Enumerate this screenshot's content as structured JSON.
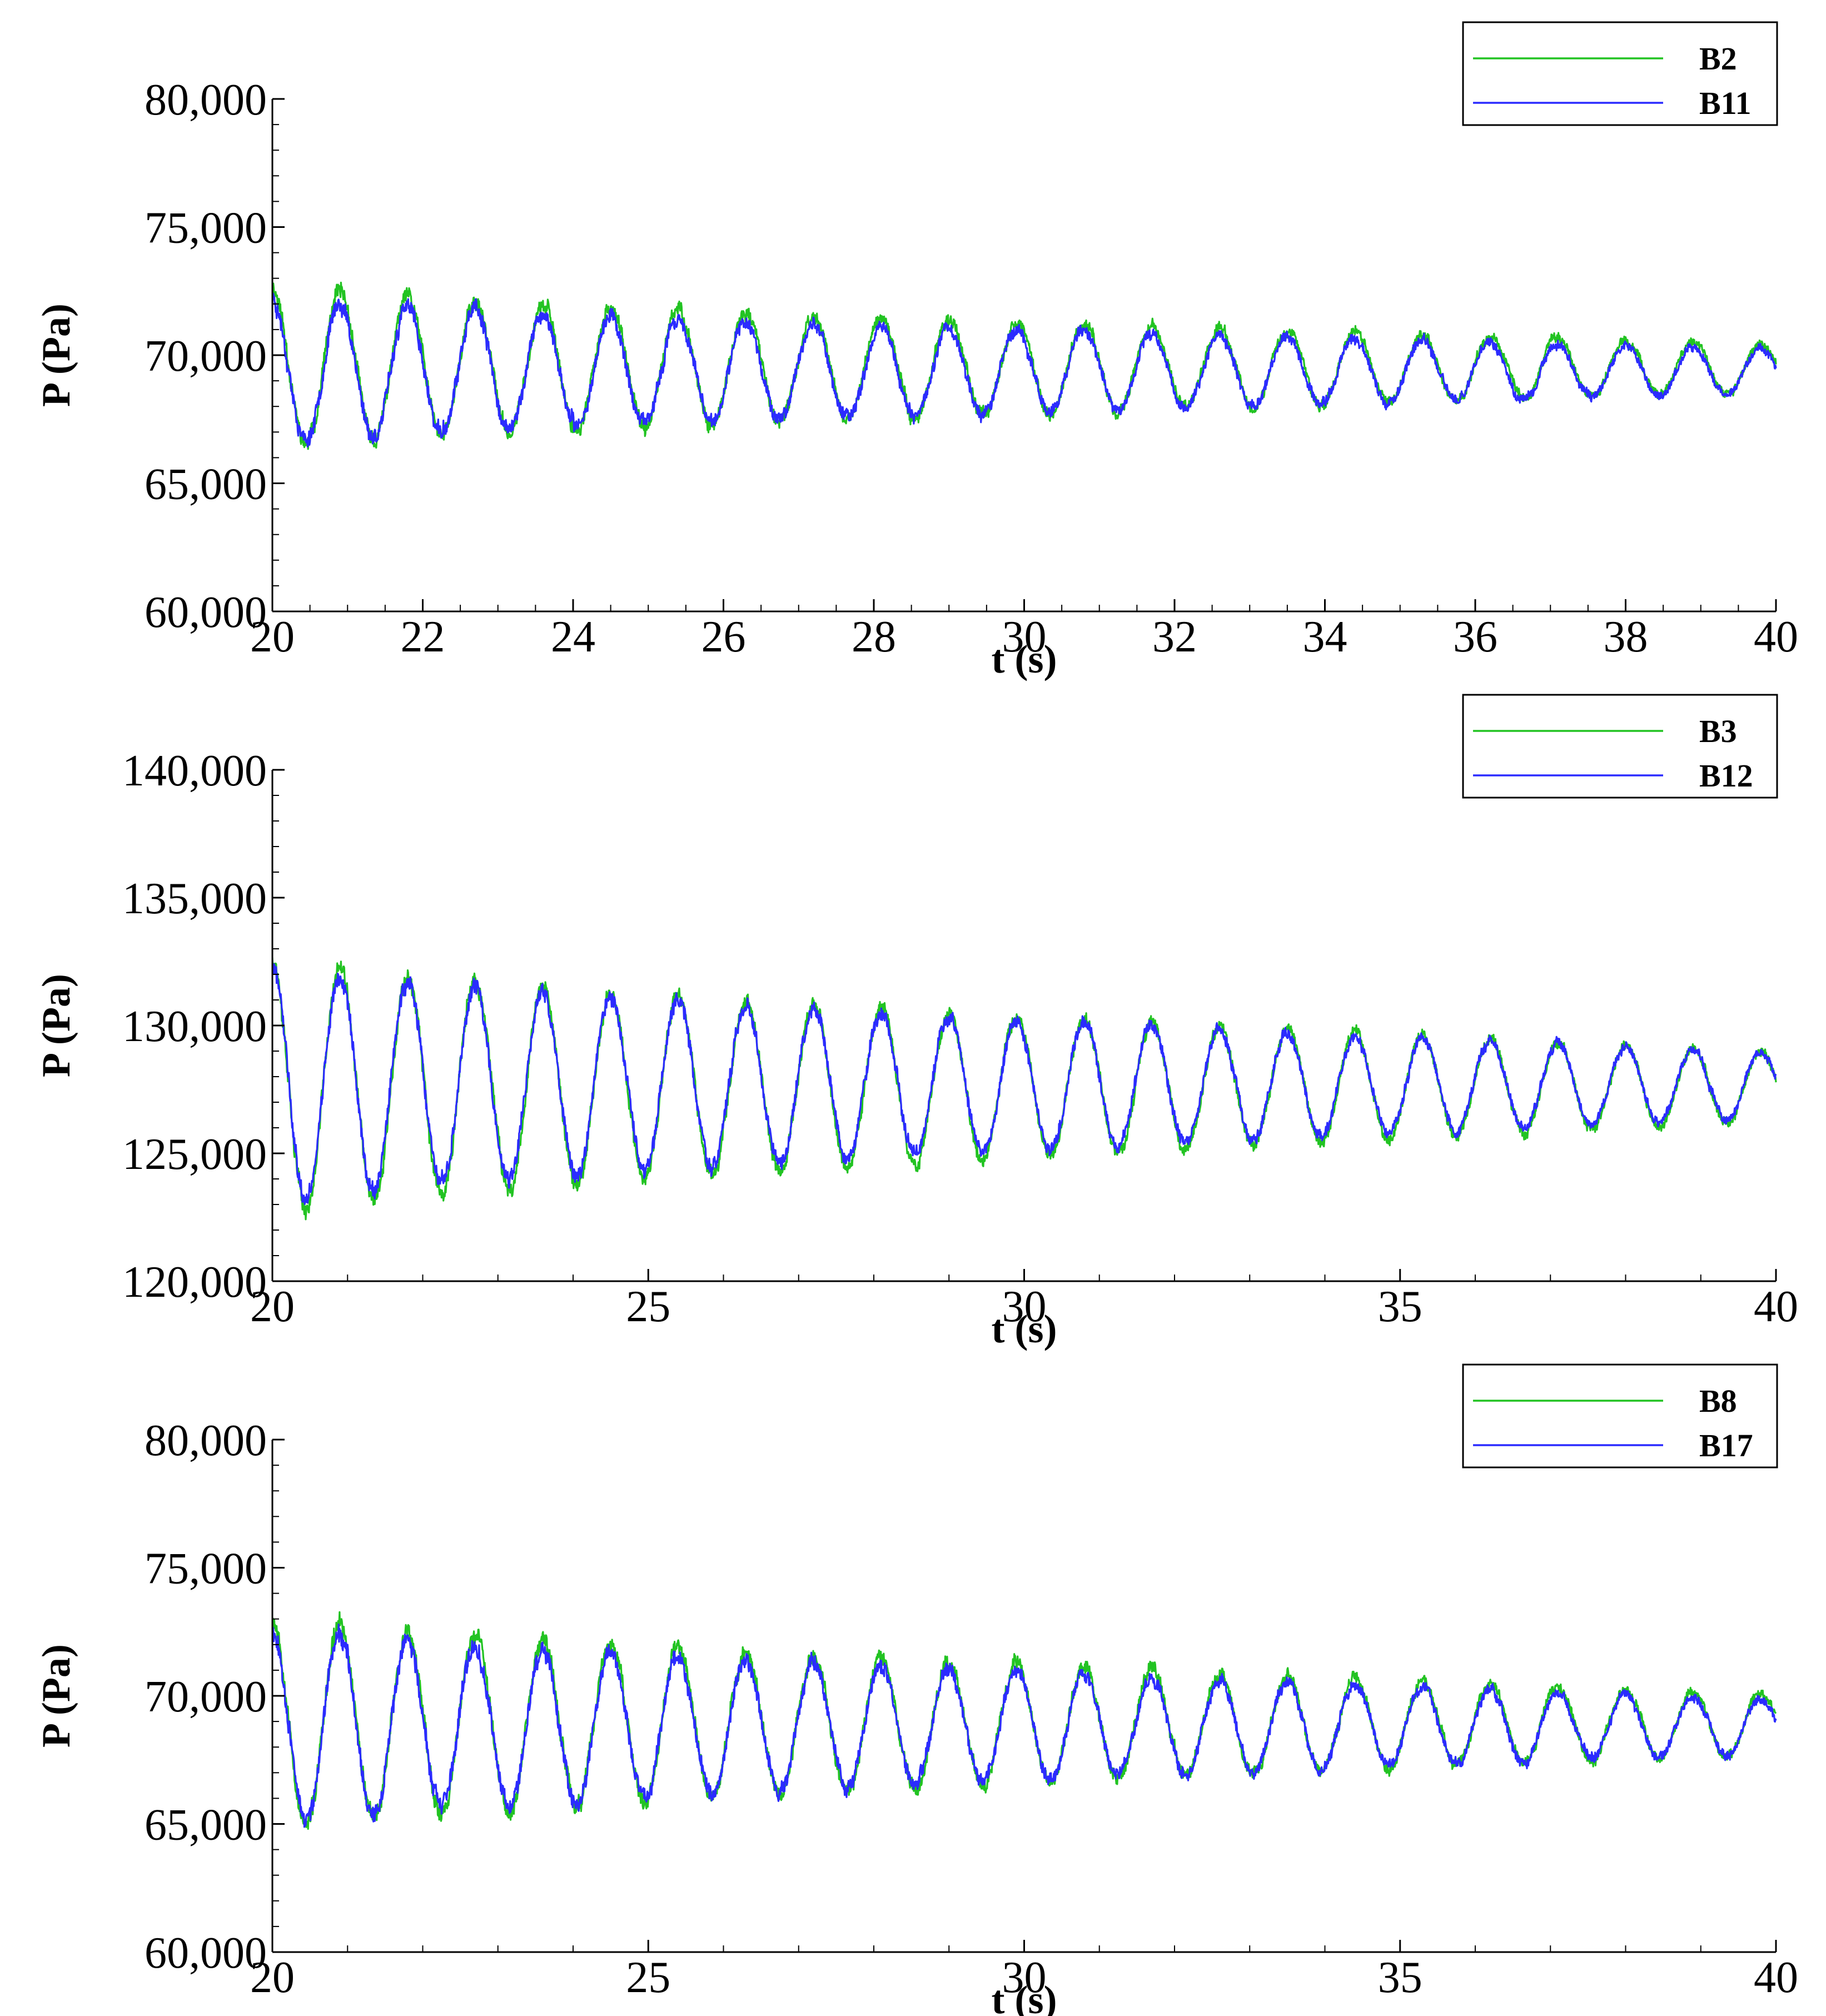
{
  "chart_data": [
    {
      "type": "line",
      "title": "",
      "xlabel": "t (s)",
      "ylabel": "P (Pa)",
      "xlim": [
        20,
        40
      ],
      "ylim": [
        60000,
        80000
      ],
      "xticks": [
        20,
        22,
        24,
        26,
        28,
        30,
        32,
        34,
        36,
        38,
        40
      ],
      "xtick_labels": [
        "20",
        "22",
        "24",
        "26",
        "28",
        "30",
        "32",
        "34",
        "36",
        "38",
        "40"
      ],
      "yticks": [
        60000,
        65000,
        70000,
        75000,
        80000
      ],
      "ytick_labels": [
        "60,000",
        "65,000",
        "70,000",
        "75,000",
        "80,000"
      ],
      "legend_position": "top-right",
      "period": 0.9,
      "mean": 69500,
      "amp_start": 3000,
      "amp_end": 900,
      "noise": 350,
      "series": [
        {
          "name": "B2",
          "color": "#22c322",
          "amp_scale": 1.05,
          "mean_offset": 0,
          "phase": 0,
          "seed": 11
        },
        {
          "name": "B11",
          "color": "#2b2bff",
          "amp_scale": 0.95,
          "mean_offset": -120,
          "phase": 0.02,
          "seed": 23
        }
      ]
    },
    {
      "type": "line",
      "title": "",
      "xlabel": "t (s)",
      "ylabel": "P (Pa)",
      "xlim": [
        20,
        40
      ],
      "ylim": [
        120000,
        140000
      ],
      "xticks": [
        20,
        25,
        30,
        35,
        40
      ],
      "xtick_labels": [
        "20",
        "25",
        "30",
        "35",
        "40"
      ],
      "yticks": [
        120000,
        125000,
        130000,
        135000,
        140000
      ],
      "ytick_labels": [
        "120,000",
        "125,000",
        "130,000",
        "135,000",
        "140,000"
      ],
      "legend_position": "top-right",
      "period": 0.9,
      "mean": 127600,
      "amp_start": 4800,
      "amp_end": 1300,
      "noise": 380,
      "series": [
        {
          "name": "B3",
          "color": "#22c322",
          "amp_scale": 1.05,
          "mean_offset": 0,
          "phase": 0,
          "seed": 37
        },
        {
          "name": "B12",
          "color": "#2b2bff",
          "amp_scale": 0.97,
          "mean_offset": 60,
          "phase": 0.02,
          "seed": 41
        }
      ]
    },
    {
      "type": "line",
      "title": "",
      "xlabel": "t (s)",
      "ylabel": "P (Pa)",
      "xlim": [
        20,
        40
      ],
      "ylim": [
        60000,
        80000
      ],
      "xticks": [
        20,
        25,
        30,
        35,
        40
      ],
      "xtick_labels": [
        "20",
        "25",
        "30",
        "35",
        "40"
      ],
      "yticks": [
        60000,
        65000,
        70000,
        75000,
        80000
      ],
      "ytick_labels": [
        "60,000",
        "65,000",
        "70,000",
        "75,000",
        "80,000"
      ],
      "legend_position": "top-right",
      "period": 0.9,
      "mean": 68900,
      "amp_start": 4000,
      "amp_end": 1100,
      "noise": 400,
      "series": [
        {
          "name": "B8",
          "color": "#22c322",
          "amp_scale": 1.05,
          "mean_offset": 0,
          "phase": 0,
          "seed": 53
        },
        {
          "name": "B17",
          "color": "#2b2bff",
          "amp_scale": 0.96,
          "mean_offset": -80,
          "phase": 0.02,
          "seed": 67
        }
      ]
    }
  ]
}
